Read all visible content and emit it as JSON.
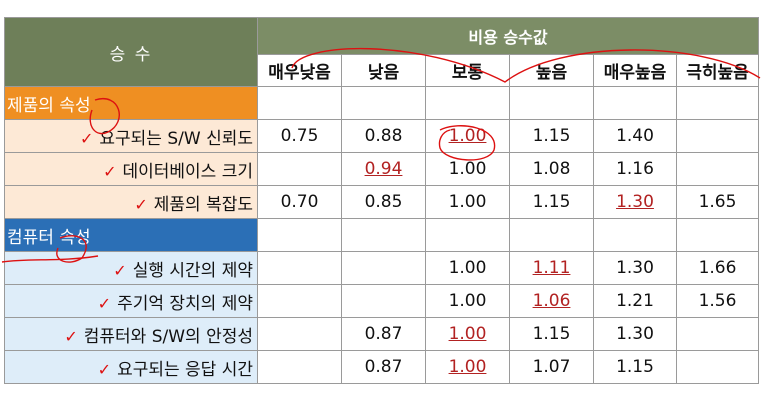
{
  "header": {
    "corner_label": "승 수",
    "group_label": "비용 승수값",
    "levels": [
      "매우낮음",
      "낮음",
      "보통",
      "높음",
      "매우높음",
      "극히높음"
    ]
  },
  "sections": [
    {
      "label": "제품의 속성",
      "color": "#ef8f22",
      "rows": [
        {
          "label": "요구되는 S/W 신뢰도",
          "checked": true,
          "values": [
            "0.75",
            "0.88",
            "1.00",
            "1.15",
            "1.40",
            ""
          ],
          "highlight": [
            2
          ]
        },
        {
          "label": "데이터베이스 크기",
          "checked": true,
          "values": [
            "",
            "0.94",
            "1.00",
            "1.08",
            "1.16",
            ""
          ],
          "highlight": [
            1
          ]
        },
        {
          "label": "제품의 복잡도",
          "checked": true,
          "values": [
            "0.70",
            "0.85",
            "1.00",
            "1.15",
            "1.30",
            "1.65"
          ],
          "highlight": [
            4
          ]
        }
      ]
    },
    {
      "label": "컴퓨터 속성",
      "color": "#2b6fb6",
      "rows": [
        {
          "label": "실행 시간의 제약",
          "checked": true,
          "values": [
            "",
            "",
            "1.00",
            "1.11",
            "1.30",
            "1.66"
          ],
          "highlight": [
            3
          ]
        },
        {
          "label": "주기억 장치의 제약",
          "checked": true,
          "values": [
            "",
            "",
            "1.00",
            "1.06",
            "1.21",
            "1.56"
          ],
          "highlight": [
            3
          ]
        },
        {
          "label": "컴퓨터와 S/W의 안정성",
          "checked": true,
          "values": [
            "",
            "0.87",
            "1.00",
            "1.15",
            "1.30",
            ""
          ],
          "highlight": [
            2
          ]
        },
        {
          "label": "요구되는 응답 시간",
          "checked": true,
          "values": [
            "",
            "0.87",
            "1.00",
            "1.07",
            "1.15",
            ""
          ],
          "highlight": [
            2
          ]
        }
      ]
    }
  ]
}
